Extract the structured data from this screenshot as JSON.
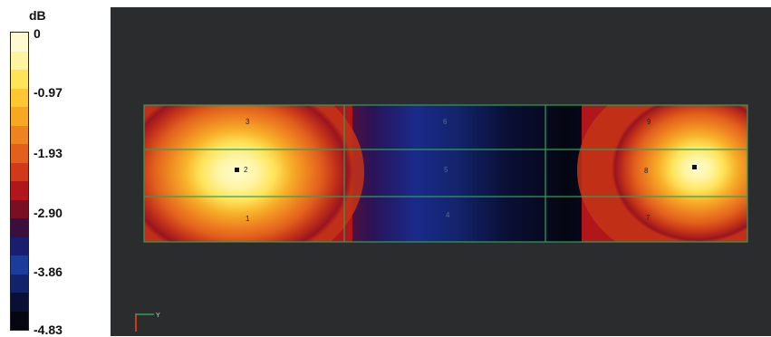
{
  "legend": {
    "unit": "dB",
    "ticks": [
      "0",
      "-0.97",
      "-1.93",
      "-2.90",
      "-3.86",
      "-4.83"
    ],
    "colors": [
      "#fffbd0",
      "#fff4a0",
      "#ffe45a",
      "#ffc832",
      "#f7a823",
      "#ee8420",
      "#e2601c",
      "#d03a18",
      "#b0161a",
      "#7a0e22",
      "#3a0f3e",
      "#1a1e6e",
      "#1d3b98",
      "#13236b",
      "#0a0f36",
      "#050612"
    ]
  },
  "viewport": {
    "background": "#2b2c2e",
    "grid_color": "#2fa05a",
    "region_labels": [
      "1",
      "2",
      "3",
      "4",
      "5",
      "6",
      "7",
      "8",
      "9"
    ]
  },
  "triad": {
    "axis_label": "Y"
  }
}
